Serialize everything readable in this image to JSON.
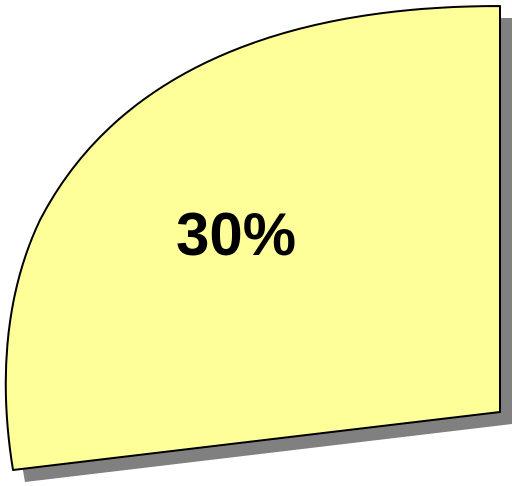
{
  "chart_data": {
    "type": "pie",
    "title": "",
    "slices": [
      {
        "label": "30%",
        "value": 30,
        "color": "#ffff99"
      }
    ],
    "colors": {
      "slice_fill": "#ffff99",
      "outline": "#000000",
      "shadow": "#808080",
      "label": "#000000"
    }
  }
}
